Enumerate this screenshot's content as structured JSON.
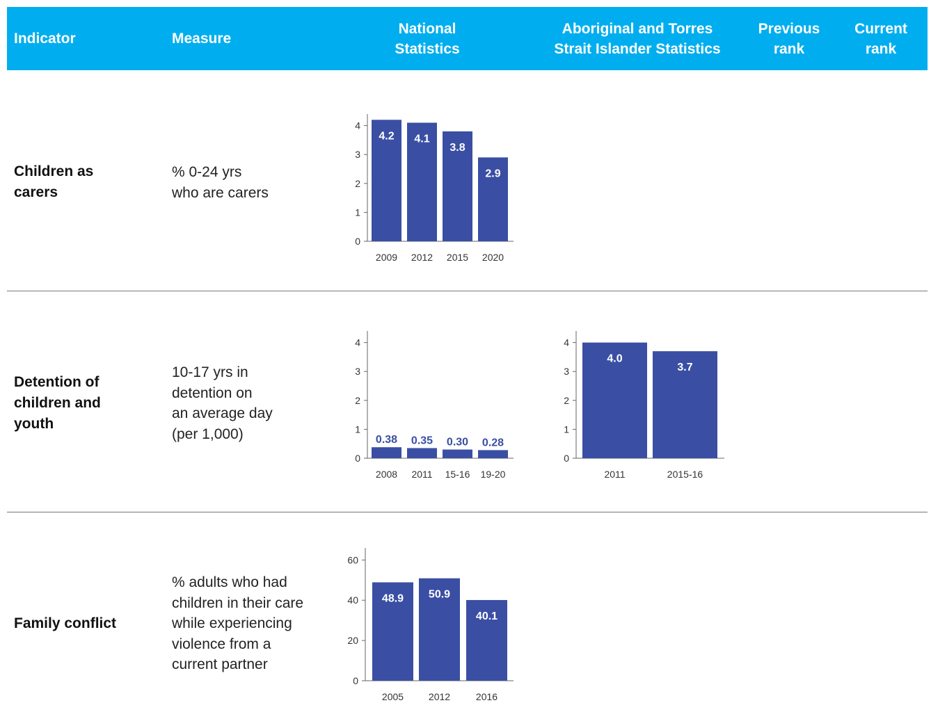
{
  "header": {
    "indicator": "Indicator",
    "measure": "Measure",
    "national": [
      "National",
      "Statistics"
    ],
    "aboriginal": [
      "Aboriginal and Torres",
      "Strait Islander Statistics"
    ],
    "previous": [
      "Previous",
      "rank"
    ],
    "current": [
      "Current",
      "rank"
    ]
  },
  "rows": [
    {
      "indicator": [
        "Children as",
        "carers"
      ],
      "measure": [
        "% 0-24 yrs",
        "who are carers"
      ]
    },
    {
      "indicator": [
        "Detention of",
        "children and",
        "youth"
      ],
      "measure": [
        "10-17 yrs in",
        "detention on",
        "an average day",
        "(per 1,000)"
      ]
    },
    {
      "indicator": [
        "Family conflict"
      ],
      "measure": [
        "% adults who had",
        "children in their care",
        "while experiencing",
        "violence from a",
        "current partner"
      ]
    }
  ],
  "colors": {
    "bar": "#3a4fa3",
    "header_bg": "#00aeef",
    "label_inside": "#ffffff",
    "label_outside": "#3a4fa3"
  },
  "chart_data": [
    {
      "id": "carers-national",
      "type": "bar",
      "categories": [
        "2009",
        "2012",
        "2015",
        "2020"
      ],
      "values": [
        4.2,
        4.1,
        3.8,
        2.9
      ],
      "value_labels": [
        "4.2",
        "4.1",
        "3.8",
        "2.9"
      ],
      "yticks": [
        "0",
        "1",
        "2",
        "3",
        "4"
      ],
      "ylim": [
        0,
        4.4
      ],
      "label_position": "inside"
    },
    {
      "id": "detention-national",
      "type": "bar",
      "categories": [
        "2008",
        "2011",
        "15-16",
        "19-20"
      ],
      "values": [
        0.38,
        0.35,
        0.3,
        0.28
      ],
      "value_labels": [
        "0.38",
        "0.35",
        "0.30",
        "0.28"
      ],
      "yticks": [
        "0",
        "1",
        "2",
        "3",
        "4"
      ],
      "ylim": [
        0,
        4.4
      ],
      "label_position": "outside"
    },
    {
      "id": "detention-aboriginal",
      "type": "bar",
      "categories": [
        "2011",
        "2015-16"
      ],
      "values": [
        4.0,
        3.7
      ],
      "value_labels": [
        "4.0",
        "3.7"
      ],
      "yticks": [
        "0",
        "1",
        "2",
        "3",
        "4"
      ],
      "ylim": [
        0,
        4.4
      ],
      "label_position": "inside"
    },
    {
      "id": "family-national",
      "type": "bar",
      "categories": [
        "2005",
        "2012",
        "2016"
      ],
      "values": [
        48.9,
        50.9,
        40.1
      ],
      "value_labels": [
        "48.9",
        "50.9",
        "40.1"
      ],
      "yticks": [
        "0",
        "20",
        "40",
        "60"
      ],
      "ylim": [
        0,
        66
      ],
      "label_position": "inside"
    }
  ]
}
